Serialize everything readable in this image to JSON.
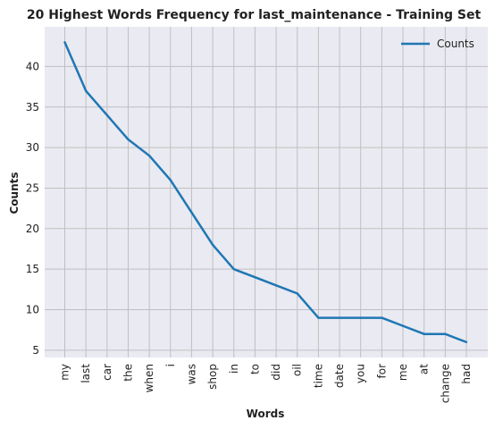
{
  "chart_data": {
    "type": "line",
    "title": "20 Highest Words Frequency for last_maintenance - Training Set",
    "xlabel": "Words",
    "ylabel": "Counts",
    "categories": [
      "my",
      "last",
      "car",
      "the",
      "when",
      "i",
      "was",
      "shop",
      "in",
      "to",
      "did",
      "oil",
      "time",
      "date",
      "you",
      "for",
      "me",
      "at",
      "change",
      "had"
    ],
    "series": [
      {
        "name": "Counts",
        "values": [
          43,
          37,
          34,
          31,
          29,
          26,
          22,
          18,
          15,
          14,
          13,
          12,
          9,
          9,
          9,
          9,
          8,
          7,
          7,
          6
        ]
      }
    ],
    "ylim": [
      4.1,
      44.9
    ],
    "yticks": [
      5,
      10,
      15,
      20,
      25,
      30,
      35,
      40
    ],
    "grid": true,
    "legend_position": "top-right",
    "colors": {
      "line": "#1f77b4",
      "plot_bg": "#eaeaf2",
      "grid": "#c0c0c0"
    }
  }
}
